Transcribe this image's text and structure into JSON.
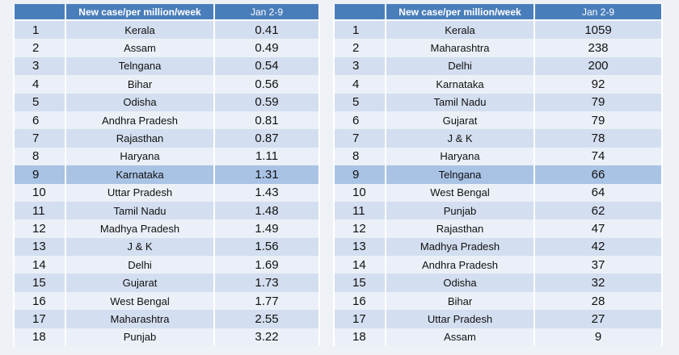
{
  "left_table": {
    "header": {
      "metric": "New case/per million/week",
      "period": "Jan 2-9"
    },
    "rows": [
      {
        "rank": "1",
        "state": "Kerala",
        "value": "0.41"
      },
      {
        "rank": "2",
        "state": "Assam",
        "value": "0.49"
      },
      {
        "rank": "3",
        "state": "Telngana",
        "value": "0.54"
      },
      {
        "rank": "4",
        "state": "Bihar",
        "value": "0.56"
      },
      {
        "rank": "5",
        "state": "Odisha",
        "value": "0.59"
      },
      {
        "rank": "6",
        "state": "Andhra Pradesh",
        "value": "0.81"
      },
      {
        "rank": "7",
        "state": "Rajasthan",
        "value": "0.87"
      },
      {
        "rank": "8",
        "state": "Haryana",
        "value": "1.11"
      },
      {
        "rank": "9",
        "state": "Karnataka",
        "value": "1.31"
      },
      {
        "rank": "10",
        "state": "Uttar Pradesh",
        "value": "1.43"
      },
      {
        "rank": "11",
        "state": "Tamil Nadu",
        "value": "1.48"
      },
      {
        "rank": "12",
        "state": "Madhya Pradesh",
        "value": "1.49"
      },
      {
        "rank": "13",
        "state": "J & K",
        "value": "1.56"
      },
      {
        "rank": "14",
        "state": "Delhi",
        "value": "1.69"
      },
      {
        "rank": "15",
        "state": "Gujarat",
        "value": "1.73"
      },
      {
        "rank": "16",
        "state": "West Bengal",
        "value": "1.77"
      },
      {
        "rank": "17",
        "state": "Maharashtra",
        "value": "2.55"
      },
      {
        "rank": "18",
        "state": "Punjab",
        "value": "3.22"
      }
    ]
  },
  "right_table": {
    "header": {
      "metric": "New case/per million/week",
      "period": "Jan 2-9"
    },
    "rows": [
      {
        "rank": "1",
        "state": "Kerala",
        "value": "1059"
      },
      {
        "rank": "2",
        "state": "Maharashtra",
        "value": "238"
      },
      {
        "rank": "3",
        "state": "Delhi",
        "value": "200"
      },
      {
        "rank": "4",
        "state": "Karnataka",
        "value": "92"
      },
      {
        "rank": "5",
        "state": "Tamil Nadu",
        "value": "79"
      },
      {
        "rank": "6",
        "state": "Gujarat",
        "value": "79"
      },
      {
        "rank": "7",
        "state": "J & K",
        "value": "78"
      },
      {
        "rank": "8",
        "state": "Haryana",
        "value": "74"
      },
      {
        "rank": "9",
        "state": "Telngana",
        "value": "66"
      },
      {
        "rank": "10",
        "state": "West Bengal",
        "value": "64"
      },
      {
        "rank": "11",
        "state": "Punjab",
        "value": "62"
      },
      {
        "rank": "12",
        "state": "Rajasthan",
        "value": "47"
      },
      {
        "rank": "13",
        "state": "Madhya Pradesh",
        "value": "42"
      },
      {
        "rank": "14",
        "state": "Andhra Pradesh",
        "value": "37"
      },
      {
        "rank": "15",
        "state": "Odisha",
        "value": "32"
      },
      {
        "rank": "16",
        "state": "Bihar",
        "value": "28"
      },
      {
        "rank": "17",
        "state": "Uttar Pradesh",
        "value": "27"
      },
      {
        "rank": "18",
        "state": "Assam",
        "value": "9"
      }
    ]
  },
  "colors": {
    "header_bg": "#4a7ebb",
    "row_even": "#d3dff0",
    "row_odd": "#ebf0f8",
    "row_highlight": "#a9c3e5"
  }
}
